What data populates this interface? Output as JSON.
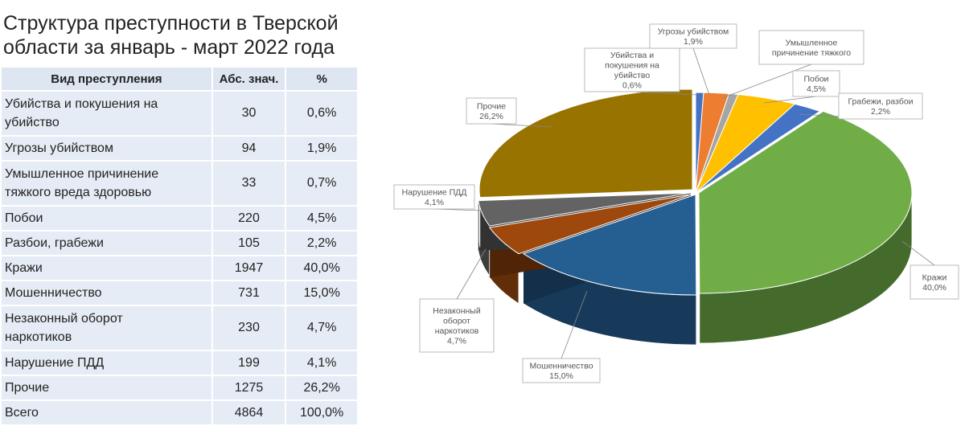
{
  "title_line1": "Структура преступности в Тверской",
  "title_line2": "области за январь - март 2022 года",
  "table": {
    "headers": [
      "Вид преступления",
      "Абс. знач.",
      "%"
    ],
    "rows": [
      {
        "name": [
          "Убийства и покушения на",
          "убийство"
        ],
        "abs": "30",
        "pct": "0,6%"
      },
      {
        "name": [
          "Угрозы убийством"
        ],
        "abs": "94",
        "pct": "1,9%"
      },
      {
        "name": [
          "Умышленное причинение",
          "тяжкого вреда здоровью"
        ],
        "abs": "33",
        "pct": "0,7%"
      },
      {
        "name": [
          "Побои"
        ],
        "abs": "220",
        "pct": "4,5%"
      },
      {
        "name": [
          "Разбои, грабежи"
        ],
        "abs": "105",
        "pct": "2,2%"
      },
      {
        "name": [
          "Кражи"
        ],
        "abs": "1947",
        "pct": "40,0%"
      },
      {
        "name": [
          "Мошенничество"
        ],
        "abs": "731",
        "pct": "15,0%"
      },
      {
        "name": [
          "Незаконный оборот",
          "наркотиков"
        ],
        "abs": "230",
        "pct": "4,7%"
      },
      {
        "name": [
          "Нарушение ПДД"
        ],
        "abs": "199",
        "pct": "4,1%"
      },
      {
        "name": [
          "Прочие"
        ],
        "abs": "1275",
        "pct": "26,2%"
      },
      {
        "name": [
          "Всего"
        ],
        "abs": "4864",
        "pct": "100,0%"
      }
    ]
  },
  "chart_data": {
    "type": "pie",
    "style": "3d-exploded",
    "slices": [
      {
        "label": [
          "Убийства и",
          "покушения на",
          "убийство"
        ],
        "pct_label": "0,6%",
        "value": 0.6,
        "color": "#4472c4"
      },
      {
        "label": [
          "Угрозы убийством"
        ],
        "pct_label": "1,9%",
        "value": 1.9,
        "color": "#ed7d31"
      },
      {
        "label": [
          "Умышленное",
          "причинение тяжкого"
        ],
        "pct_label": "",
        "value": 0.7,
        "color": "#a5a5a5"
      },
      {
        "label": [
          "Побои"
        ],
        "pct_label": "4,5%",
        "value": 4.5,
        "color": "#ffc000"
      },
      {
        "label": [
          "Грабежи, разбои"
        ],
        "pct_label": "2,2%",
        "value": 2.2,
        "color": "#4472c4"
      },
      {
        "label": [
          "Кражи"
        ],
        "pct_label": "40,0%",
        "value": 40.0,
        "color": "#70ad47"
      },
      {
        "label": [
          "Мошенничество"
        ],
        "pct_label": "15,0%",
        "value": 15.0,
        "color": "#255e91"
      },
      {
        "label": [
          "Незаконный",
          "оборот",
          "наркотиков"
        ],
        "pct_label": "4,7%",
        "value": 4.7,
        "color": "#9e480e"
      },
      {
        "label": [
          "Нарушение ПДД"
        ],
        "pct_label": "4,1%",
        "value": 4.1,
        "color": "#636363"
      },
      {
        "label": [
          "Прочие"
        ],
        "pct_label": "26,2%",
        "value": 26.2,
        "color": "#997300"
      }
    ]
  }
}
